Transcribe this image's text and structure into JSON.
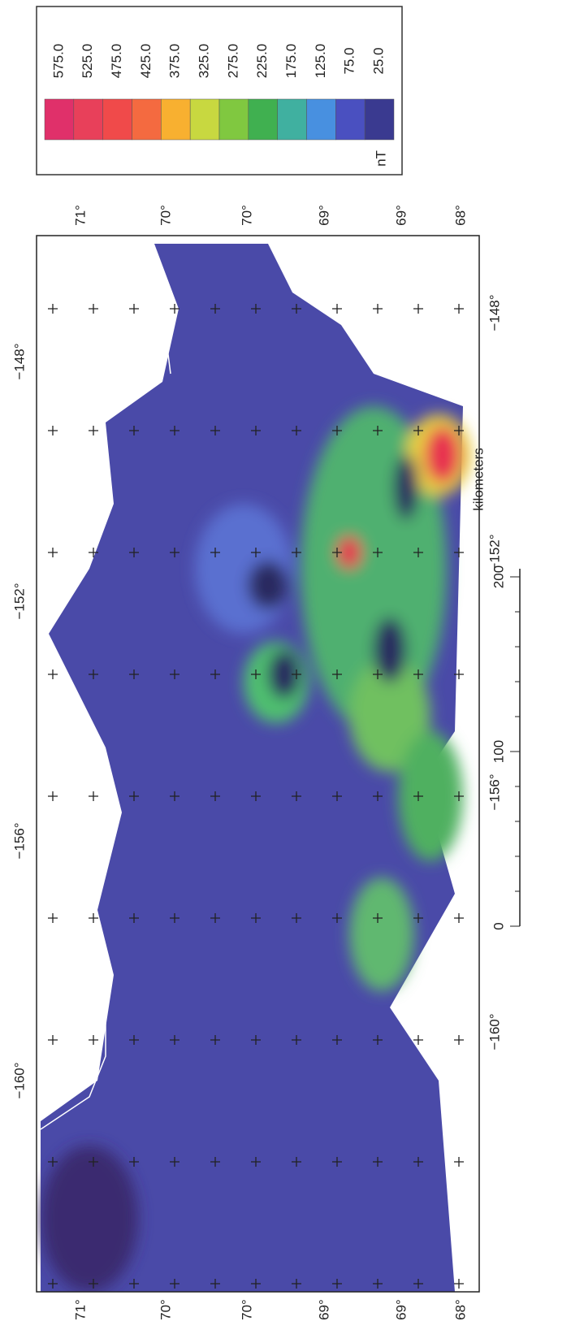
{
  "colorbar": {
    "unit": "nT",
    "labels": [
      "575.0",
      "525.0",
      "475.0",
      "425.0",
      "375.0",
      "325.0",
      "275.0",
      "225.0",
      "175.0",
      "125.0",
      "75.0",
      "25.0"
    ],
    "colors": [
      "#e0306a",
      "#e8405a",
      "#f04a4a",
      "#f46a40",
      "#f8b030",
      "#c8d840",
      "#80c840",
      "#40b050",
      "#40b0a0",
      "#4890e0",
      "#4a50c0",
      "#3a3a90"
    ]
  },
  "latitude_labels_top": [
    "71°",
    "70°",
    "70°",
    "69°",
    "69°",
    "68°"
  ],
  "latitude_labels_bottom": [
    "71°",
    "70°",
    "70°",
    "69°",
    "69°",
    "68°"
  ],
  "longitude_labels_left": [
    "−148°",
    "−152°",
    "−156°",
    "−160°"
  ],
  "longitude_labels_right": [
    "−148°",
    "−152°",
    "−156°",
    "−160°"
  ],
  "scale": {
    "ticks": [
      0,
      100,
      200
    ],
    "unit": "kilometers"
  }
}
